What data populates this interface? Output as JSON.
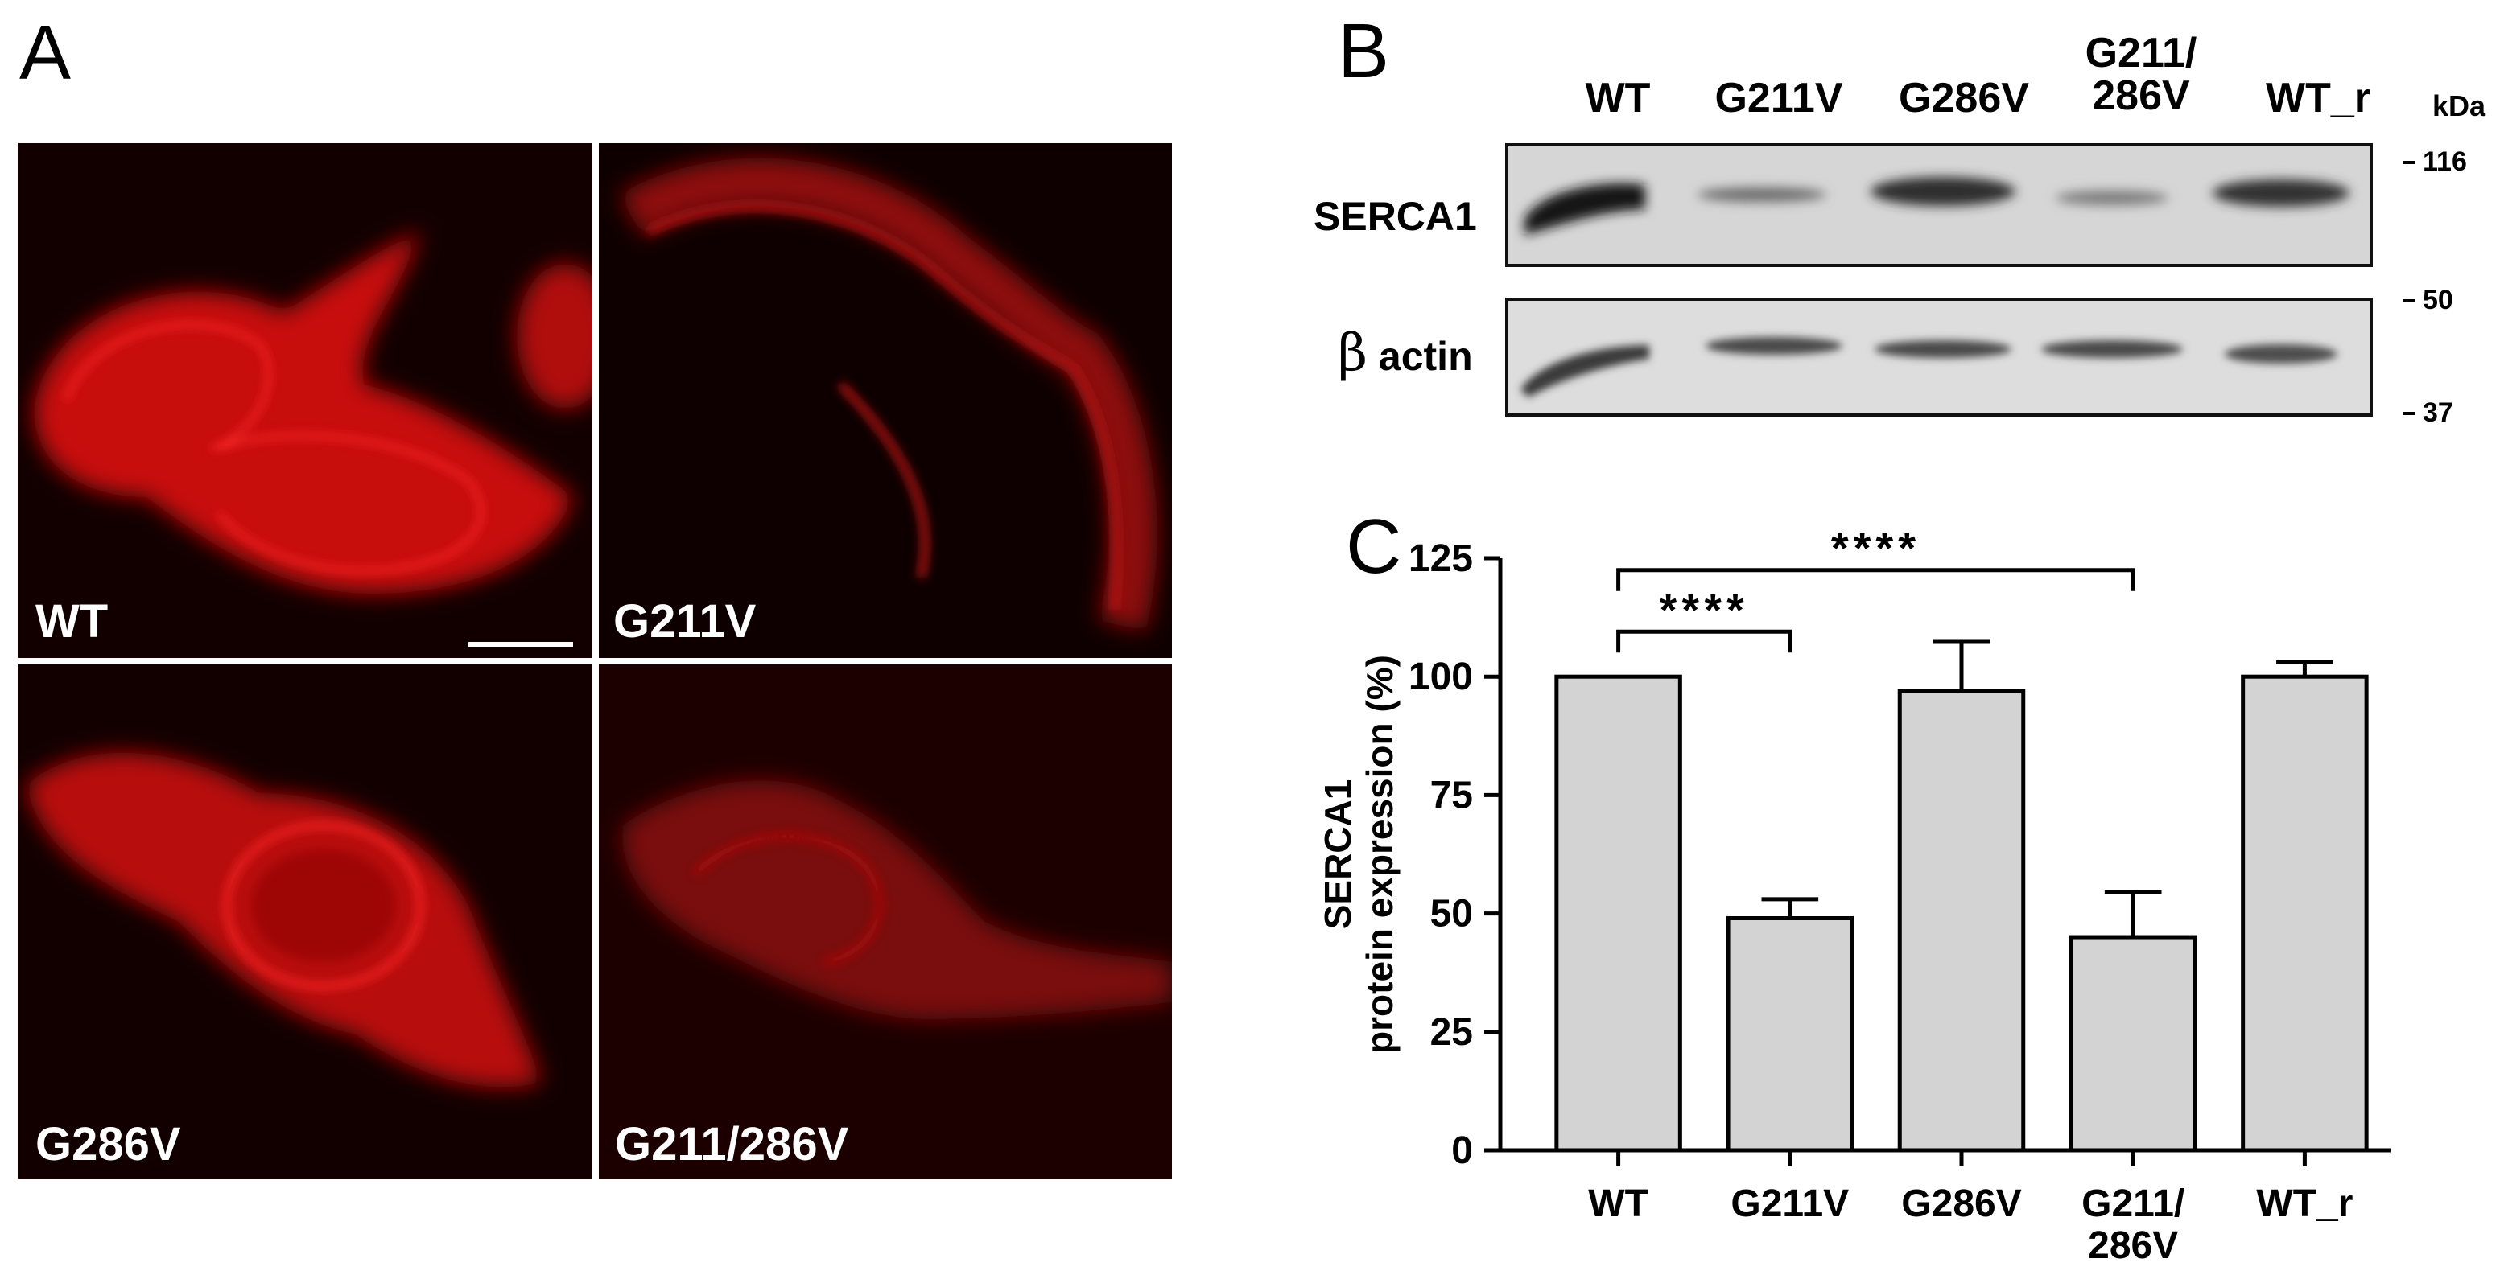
{
  "panels": {
    "A": {
      "letter": "A",
      "images": [
        {
          "label": "WT"
        },
        {
          "label": "G211V"
        },
        {
          "label": "G286V"
        },
        {
          "label": "G211/286V"
        }
      ]
    },
    "B": {
      "letter": "B",
      "lanes": [
        "WT",
        "G211V",
        "G286V",
        "G211/\n286V",
        "WT_r"
      ],
      "kda_unit": "kDa",
      "markers": [
        "116",
        "50",
        "37"
      ],
      "rows": {
        "serca": "SERCA1",
        "actin_symbol": "β",
        "actin_text": "actin"
      }
    },
    "C": {
      "letter": "C"
    }
  },
  "chart_data": {
    "type": "bar",
    "categories": [
      "WT",
      "G211V",
      "G286V",
      "G211/\n286V",
      "WT_r"
    ],
    "values": [
      100,
      49,
      97,
      45,
      100
    ],
    "errors": [
      0,
      4,
      10.5,
      9.5,
      3
    ],
    "ylabel_line1": "SERCA1",
    "ylabel_line2": "protein expression (%)",
    "ylim": [
      0,
      125
    ],
    "yticks": [
      0,
      25,
      50,
      75,
      100,
      125
    ],
    "bar_color": "#d3d3d3",
    "significance": [
      {
        "from": "WT",
        "to": "G211V",
        "label": "****"
      },
      {
        "from": "WT",
        "to": "G211/\n286V",
        "label": "****"
      }
    ]
  }
}
